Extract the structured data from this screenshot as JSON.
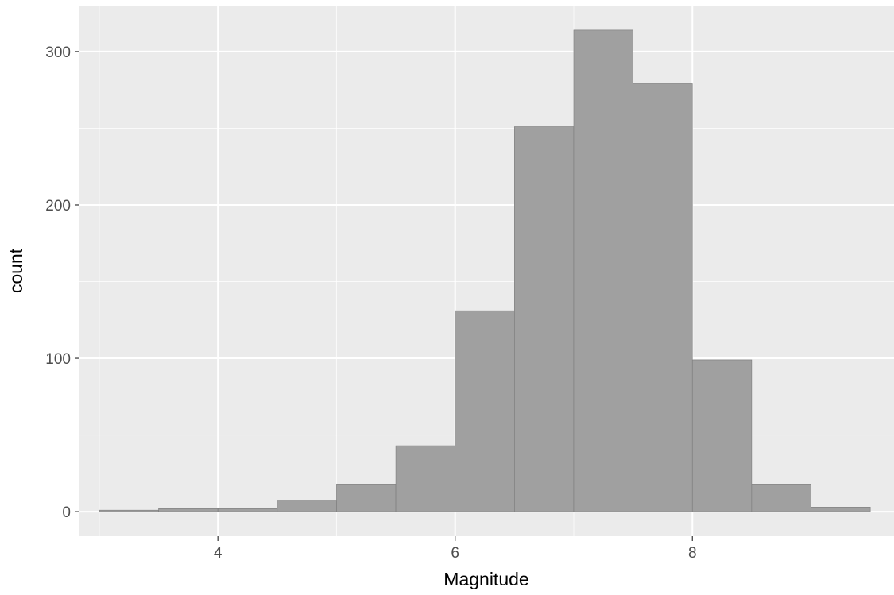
{
  "chart_data": {
    "type": "bar",
    "title": "",
    "xlabel": "Magnitude",
    "ylabel": "count",
    "bin_width": 0.5,
    "bins": [
      {
        "x_start": 3.0,
        "x_end": 3.5,
        "count": 1
      },
      {
        "x_start": 3.5,
        "x_end": 4.0,
        "count": 2
      },
      {
        "x_start": 4.0,
        "x_end": 4.5,
        "count": 2
      },
      {
        "x_start": 4.5,
        "x_end": 5.0,
        "count": 7
      },
      {
        "x_start": 5.0,
        "x_end": 5.5,
        "count": 18
      },
      {
        "x_start": 5.5,
        "x_end": 6.0,
        "count": 43
      },
      {
        "x_start": 6.0,
        "x_end": 6.5,
        "count": 131
      },
      {
        "x_start": 6.5,
        "x_end": 7.0,
        "count": 251
      },
      {
        "x_start": 7.0,
        "x_end": 7.5,
        "count": 314
      },
      {
        "x_start": 7.5,
        "x_end": 8.0,
        "count": 279
      },
      {
        "x_start": 8.0,
        "x_end": 8.5,
        "count": 99
      },
      {
        "x_start": 8.5,
        "x_end": 9.0,
        "count": 18
      },
      {
        "x_start": 9.0,
        "x_end": 9.5,
        "count": 3
      }
    ],
    "xlim": [
      2.8332,
      9.7
    ],
    "ylim": [
      -16,
      330
    ],
    "x_ticks": [
      4,
      6,
      8
    ],
    "x_minor_ticks": [
      3,
      5,
      7,
      9
    ],
    "y_ticks": [
      0,
      100,
      200,
      300
    ],
    "y_minor_ticks": [
      50,
      150,
      250
    ],
    "grid": true,
    "legend": "none",
    "colors": {
      "panel_background": "#ebebeb",
      "grid_major": "#ffffff",
      "bar_fill": "#a0a0a0",
      "bar_outline": "#7a7a7a",
      "tick_label": "#4d4d4d",
      "axis_title": "#000000"
    }
  }
}
